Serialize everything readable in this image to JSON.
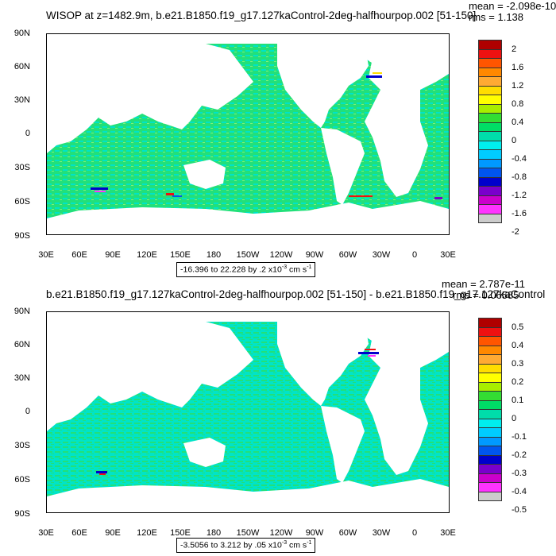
{
  "panels": [
    {
      "title": "WISOP at z=1482.9m, b.e21.B1850.f19_g17.127kaControl-2deg-halfhourpop.002 [51-150]",
      "mean": "mean = -2.098e-10",
      "rms": "rms = 1.138",
      "lat_labels": [
        "90N",
        "60N",
        "30N",
        "0",
        "30S",
        "60S",
        "90S"
      ],
      "lon_labels": [
        "30E",
        "60E",
        "90E",
        "120E",
        "150E",
        "180",
        "150W",
        "120W",
        "90W",
        "60W",
        "30W",
        "0",
        "30E"
      ],
      "range_text": "-16.396 to 22.228 by .2 x10",
      "range_exp": "-3",
      "range_unit": " cm s",
      "range_unit_exp": "-1",
      "colorbar_labels": [
        "2",
        "1.6",
        "1.2",
        "0.8",
        "0.4",
        "0",
        "-0.4",
        "-0.8",
        "-1.2",
        "-1.6",
        "-2"
      ]
    },
    {
      "title": "b.e21.B1850.f19_g17.127kaControl-2deg-halfhourpop.002 [51-150] - b.e21.B1850.f19_g17.127kaControl",
      "mean": "mean = 2.787e-11",
      "rms": "rms = 0.06585",
      "lat_labels": [
        "90N",
        "60N",
        "30N",
        "0",
        "30S",
        "60S",
        "90S"
      ],
      "lon_labels": [
        "30E",
        "60E",
        "90E",
        "120E",
        "150E",
        "180",
        "150W",
        "120W",
        "90W",
        "60W",
        "30W",
        "0",
        "30E"
      ],
      "range_text": "-3.5056 to 3.212 by .05 x10",
      "range_exp": "-3",
      "range_unit": " cm s",
      "range_unit_exp": "-1",
      "colorbar_labels": [
        "0.5",
        "0.4",
        "0.3",
        "0.2",
        "0.1",
        "0",
        "-0.1",
        "-0.2",
        "-0.3",
        "-0.4",
        "-0.5"
      ]
    }
  ],
  "colors": {
    "ocean_main": "#22e07a",
    "ocean_alt": "#00e4c8",
    "land": "#ffffff",
    "colorbar": [
      "#b00000",
      "#ee1111",
      "#ff5500",
      "#ff8800",
      "#ffaa33",
      "#ffdd00",
      "#ffff00",
      "#a8ee00",
      "#33dd33",
      "#00dd66",
      "#00ddaa",
      "#00eeee",
      "#00ccff",
      "#0099ff",
      "#0055ee",
      "#0000cc",
      "#7a00cc",
      "#cc00cc",
      "#ff33ff",
      "#cccccc",
      "#777777"
    ]
  }
}
